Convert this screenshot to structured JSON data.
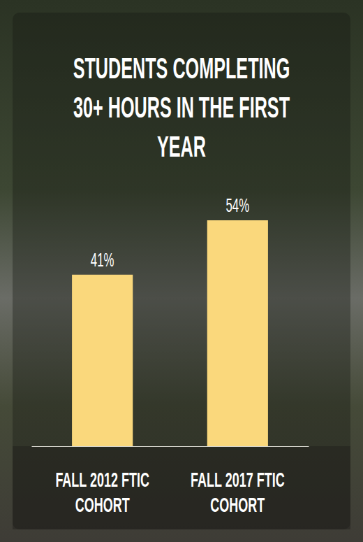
{
  "chart_data": {
    "type": "bar",
    "title": "STUDENTS COMPLETING 30+ HOURS IN THE FIRST YEAR",
    "categories": [
      "FALL 2012 FTIC COHORT",
      "FALL 2017 FTIC COHORT"
    ],
    "values": [
      41,
      54
    ],
    "value_labels": [
      "41%",
      "54%"
    ],
    "color": "#fad87c",
    "data_labels": true,
    "tick_labels": "x",
    "grid": false
  }
}
